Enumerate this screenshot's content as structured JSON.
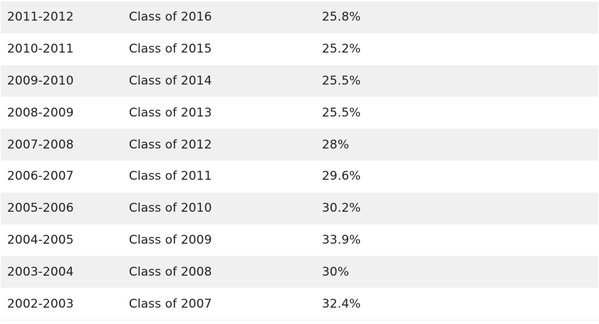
{
  "table": {
    "rows": [
      {
        "year": "2011-2012",
        "class": "Class of 2016",
        "percent": "25.8%"
      },
      {
        "year": "2010-2011",
        "class": "Class of 2015",
        "percent": "25.2%"
      },
      {
        "year": "2009-2010",
        "class": "Class of 2014",
        "percent": "25.5%"
      },
      {
        "year": "2008-2009",
        "class": "Class of 2013",
        "percent": "25.5%"
      },
      {
        "year": "2007-2008",
        "class": "Class of 2012",
        "percent": "28%"
      },
      {
        "year": "2006-2007",
        "class": "Class of 2011",
        "percent": "29.6%"
      },
      {
        "year": "2005-2006",
        "class": "Class of 2010",
        "percent": "30.2%"
      },
      {
        "year": "2004-2005",
        "class": "Class of 2009",
        "percent": "33.9%"
      },
      {
        "year": "2003-2004",
        "class": "Class of 2008",
        "percent": "30%"
      },
      {
        "year": "2002-2003",
        "class": "Class of 2007",
        "percent": "32.4%"
      }
    ]
  },
  "colors": {
    "stripe": "#f0f0f0",
    "text": "#222222"
  }
}
